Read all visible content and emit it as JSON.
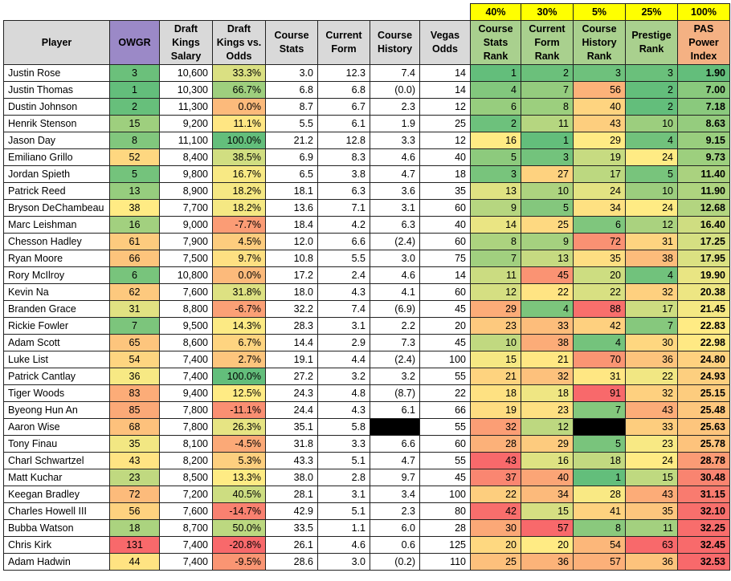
{
  "weights": [
    "40%",
    "30%",
    "5%",
    "25%",
    "100%"
  ],
  "table": {
    "header": [
      "Player",
      "OWGR",
      "Draft Kings Salary",
      "Draft Kings vs. Odds",
      "Course Stats",
      "Current Form",
      "Course History",
      "Vegas Odds",
      "Course Stats Rank",
      "Current Form Rank",
      "Course History Rank",
      "Prestige Rank",
      "PAS Power Index"
    ],
    "rows": [
      [
        "Justin Rose",
        "3",
        "10,600",
        "33.3%",
        "3.0",
        "12.3",
        "7.4",
        "14",
        "1",
        "2",
        "3",
        "3",
        "1.90"
      ],
      [
        "Justin Thomas",
        "1",
        "10,300",
        "66.7%",
        "6.8",
        "6.8",
        "(0.0)",
        "14",
        "4",
        "7",
        "56",
        "2",
        "7.00"
      ],
      [
        "Dustin Johnson",
        "2",
        "11,300",
        "0.0%",
        "8.7",
        "6.7",
        "2.3",
        "12",
        "6",
        "8",
        "40",
        "2",
        "7.18"
      ],
      [
        "Henrik Stenson",
        "15",
        "9,200",
        "11.1%",
        "5.5",
        "6.1",
        "1.9",
        "25",
        "2",
        "11",
        "43",
        "10",
        "8.63"
      ],
      [
        "Jason Day",
        "8",
        "11,100",
        "100.0%",
        "21.2",
        "12.8",
        "3.3",
        "12",
        "16",
        "1",
        "29",
        "4",
        "9.15"
      ],
      [
        "Emiliano Grillo",
        "52",
        "8,400",
        "38.5%",
        "6.9",
        "8.3",
        "4.6",
        "40",
        "5",
        "3",
        "19",
        "24",
        "9.73"
      ],
      [
        "Jordan Spieth",
        "5",
        "9,800",
        "16.7%",
        "6.5",
        "3.8",
        "4.7",
        "18",
        "3",
        "27",
        "17",
        "5",
        "11.40"
      ],
      [
        "Patrick Reed",
        "13",
        "8,900",
        "18.2%",
        "18.1",
        "6.3",
        "3.6",
        "35",
        "13",
        "10",
        "24",
        "10",
        "11.90"
      ],
      [
        "Bryson DeChambeau",
        "38",
        "7,700",
        "18.2%",
        "13.6",
        "7.1",
        "3.1",
        "60",
        "9",
        "5",
        "34",
        "24",
        "12.68"
      ],
      [
        "Marc Leishman",
        "16",
        "9,000",
        "-7.7%",
        "18.4",
        "4.2",
        "6.3",
        "40",
        "14",
        "25",
        "6",
        "12",
        "16.40"
      ],
      [
        "Chesson Hadley",
        "61",
        "7,900",
        "4.5%",
        "12.0",
        "6.6",
        "(2.4)",
        "60",
        "8",
        "9",
        "72",
        "31",
        "17.25"
      ],
      [
        "Ryan Moore",
        "66",
        "7,500",
        "9.7%",
        "10.8",
        "5.5",
        "3.0",
        "75",
        "7",
        "13",
        "35",
        "38",
        "17.95"
      ],
      [
        "Rory McIlroy",
        "6",
        "10,800",
        "0.0%",
        "17.2",
        "2.4",
        "4.6",
        "14",
        "11",
        "45",
        "20",
        "4",
        "19.90"
      ],
      [
        "Kevin Na",
        "62",
        "7,600",
        "31.8%",
        "18.0",
        "4.3",
        "4.1",
        "60",
        "12",
        "22",
        "22",
        "32",
        "20.38"
      ],
      [
        "Branden Grace",
        "31",
        "8,800",
        "-6.7%",
        "32.2",
        "7.4",
        "(6.9)",
        "45",
        "29",
        "4",
        "88",
        "17",
        "21.45"
      ],
      [
        "Rickie Fowler",
        "7",
        "9,500",
        "14.3%",
        "28.3",
        "3.1",
        "2.2",
        "20",
        "23",
        "33",
        "42",
        "7",
        "22.83"
      ],
      [
        "Adam Scott",
        "65",
        "8,600",
        "6.7%",
        "14.4",
        "2.9",
        "7.3",
        "45",
        "10",
        "38",
        "4",
        "30",
        "22.98"
      ],
      [
        "Luke List",
        "54",
        "7,400",
        "2.7%",
        "19.1",
        "4.4",
        "(2.4)",
        "100",
        "15",
        "21",
        "70",
        "36",
        "24.80"
      ],
      [
        "Patrick Cantlay",
        "36",
        "7,400",
        "100.0%",
        "27.2",
        "3.2",
        "3.2",
        "55",
        "21",
        "32",
        "31",
        "22",
        "24.93"
      ],
      [
        "Tiger Woods",
        "83",
        "9,400",
        "12.5%",
        "24.3",
        "4.8",
        "(8.7)",
        "22",
        "18",
        "18",
        "91",
        "32",
        "25.15"
      ],
      [
        "Byeong Hun An",
        "85",
        "7,800",
        "-11.1%",
        "24.4",
        "4.3",
        "6.1",
        "66",
        "19",
        "23",
        "7",
        "43",
        "25.48"
      ],
      [
        "Aaron Wise",
        "68",
        "7,800",
        "26.3%",
        "35.1",
        "5.8",
        null,
        "55",
        "32",
        "12",
        null,
        "33",
        "25.63"
      ],
      [
        "Tony Finau",
        "35",
        "8,100",
        "-4.5%",
        "31.8",
        "3.3",
        "6.6",
        "60",
        "28",
        "29",
        "5",
        "23",
        "25.78"
      ],
      [
        "Charl Schwartzel",
        "43",
        "8,200",
        "5.3%",
        "43.3",
        "5.1",
        "4.7",
        "55",
        "43",
        "16",
        "18",
        "24",
        "28.78"
      ],
      [
        "Matt Kuchar",
        "23",
        "8,500",
        "13.3%",
        "38.0",
        "2.8",
        "9.7",
        "45",
        "37",
        "40",
        "1",
        "15",
        "30.48"
      ],
      [
        "Keegan Bradley",
        "72",
        "7,200",
        "40.5%",
        "28.1",
        "3.1",
        "3.4",
        "100",
        "22",
        "34",
        "28",
        "43",
        "31.15"
      ],
      [
        "Charles Howell III",
        "56",
        "7,600",
        "-14.7%",
        "42.9",
        "5.1",
        "2.3",
        "80",
        "42",
        "15",
        "41",
        "35",
        "32.10"
      ],
      [
        "Bubba Watson",
        "18",
        "8,700",
        "50.0%",
        "33.5",
        "1.1",
        "6.0",
        "28",
        "30",
        "57",
        "8",
        "11",
        "32.25"
      ],
      [
        "Chris Kirk",
        "131",
        "7,400",
        "-20.8%",
        "26.1",
        "4.6",
        "0.6",
        "125",
        "20",
        "20",
        "54",
        "63",
        "32.45"
      ],
      [
        "Adam Hadwin",
        "44",
        "7,400",
        "-9.5%",
        "28.6",
        "3.0",
        "(0.2)",
        "110",
        "25",
        "36",
        "57",
        "36",
        "32.53"
      ]
    ]
  }
}
